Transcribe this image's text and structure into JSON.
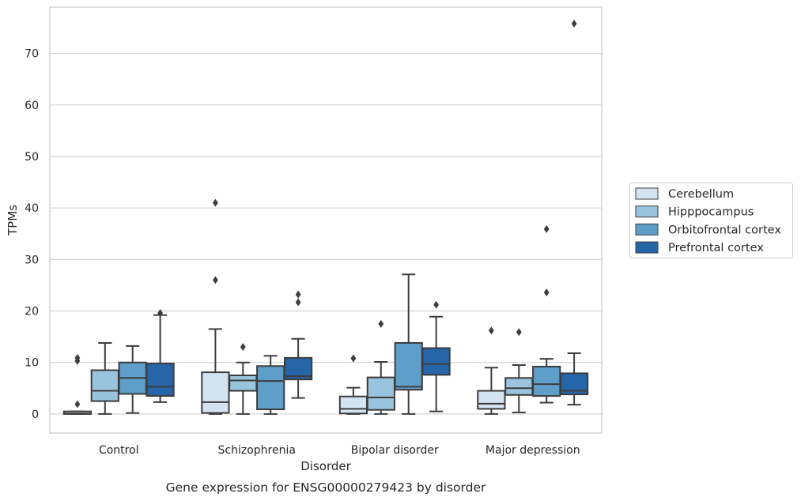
{
  "chart_data": {
    "type": "box",
    "title": "Gene expression for ENSG00000279423 by disorder",
    "xlabel": "Disorder",
    "ylabel": "TPMs",
    "ylim": [
      -3.7,
      79
    ],
    "yticks": [
      0,
      10,
      20,
      30,
      40,
      50,
      60,
      70
    ],
    "grid": "horizontal",
    "legend_position": "right",
    "categories": [
      "Control",
      "Schizophrenia",
      "Bipolar disorder",
      "Major depression"
    ],
    "series": [
      {
        "name": "Cerebellum",
        "color": "#d4e3f2",
        "boxes": [
          {
            "whisker_low": 0,
            "q1": 0,
            "median": 0.1,
            "q3": 0.5,
            "whisker_high": 0.5,
            "outliers": [
              1.9,
              10.3,
              10.9
            ]
          },
          {
            "whisker_low": 0,
            "q1": 0.2,
            "median": 2.3,
            "q3": 8.1,
            "whisker_high": 16.5,
            "outliers": [
              26,
              41
            ]
          },
          {
            "whisker_low": 0,
            "q1": 0.1,
            "median": 1,
            "q3": 3.4,
            "whisker_high": 5.1,
            "outliers": [
              10.8
            ]
          },
          {
            "whisker_low": 0,
            "q1": 1,
            "median": 2,
            "q3": 4.5,
            "whisker_high": 9,
            "outliers": [
              16.2
            ]
          }
        ]
      },
      {
        "name": "Hipppocampus",
        "color": "#9ac3dd",
        "boxes": [
          {
            "whisker_low": 0,
            "q1": 2.5,
            "median": 4.5,
            "q3": 8.5,
            "whisker_high": 13.8,
            "outliers": []
          },
          {
            "whisker_low": 0,
            "q1": 4.5,
            "median": 6.5,
            "q3": 7.5,
            "whisker_high": 10,
            "outliers": [
              13
            ]
          },
          {
            "whisker_low": 0,
            "q1": 0.8,
            "median": 3.2,
            "q3": 7.1,
            "whisker_high": 10.1,
            "outliers": [
              17.5
            ]
          },
          {
            "whisker_low": 0.3,
            "q1": 3.7,
            "median": 5,
            "q3": 7,
            "whisker_high": 9.5,
            "outliers": [
              15.9
            ]
          }
        ]
      },
      {
        "name": "Orbitofrontal cortex",
        "color": "#5f9ec9",
        "boxes": [
          {
            "whisker_low": 0.2,
            "q1": 3.9,
            "median": 7,
            "q3": 10,
            "whisker_high": 13.2,
            "outliers": []
          },
          {
            "whisker_low": 0,
            "q1": 0.9,
            "median": 6.4,
            "q3": 9.3,
            "whisker_high": 11.3,
            "outliers": []
          },
          {
            "whisker_low": 0,
            "q1": 4.7,
            "median": 5.3,
            "q3": 13.8,
            "whisker_high": 27.1,
            "outliers": []
          },
          {
            "whisker_low": 2.2,
            "q1": 3.5,
            "median": 5.8,
            "q3": 9.2,
            "whisker_high": 10.7,
            "outliers": [
              23.6,
              35.9
            ]
          }
        ]
      },
      {
        "name": "Prefrontal cortex",
        "color": "#2665a8",
        "boxes": [
          {
            "whisker_low": 2.3,
            "q1": 3.5,
            "median": 5.3,
            "q3": 9.8,
            "whisker_high": 19.2,
            "outliers": [
              19.6
            ]
          },
          {
            "whisker_low": 3.1,
            "q1": 6.7,
            "median": 7.3,
            "q3": 10.9,
            "whisker_high": 14.6,
            "outliers": [
              21.7,
              23.2
            ]
          },
          {
            "whisker_low": 0.5,
            "q1": 7.6,
            "median": 9.7,
            "q3": 12.8,
            "whisker_high": 18.9,
            "outliers": [
              21.2
            ]
          },
          {
            "whisker_low": 1.8,
            "q1": 3.8,
            "median": 4.5,
            "q3": 7.9,
            "whisker_high": 11.8,
            "outliers": [
              75.8
            ]
          }
        ]
      }
    ]
  }
}
